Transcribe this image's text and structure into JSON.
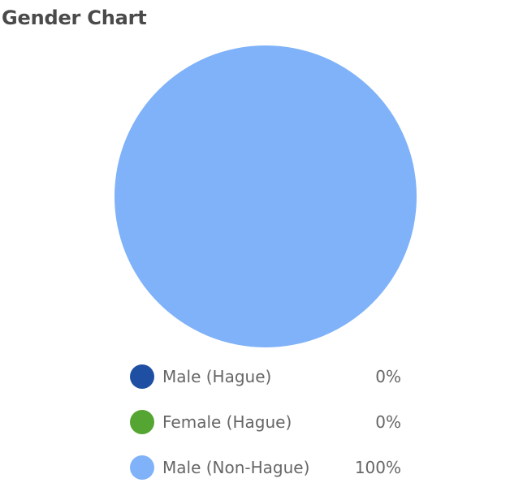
{
  "chart_data": {
    "type": "pie",
    "title": "Gender Chart",
    "categories": [
      "Male (Hague)",
      "Female (Hague)",
      "Male (Non-Hague)"
    ],
    "values": [
      0,
      0,
      100
    ],
    "value_labels": [
      "0%",
      "0%",
      "100%"
    ],
    "colors": [
      "#1f4fa3",
      "#55a533",
      "#7fb2f9"
    ],
    "legend_position": "bottom"
  }
}
